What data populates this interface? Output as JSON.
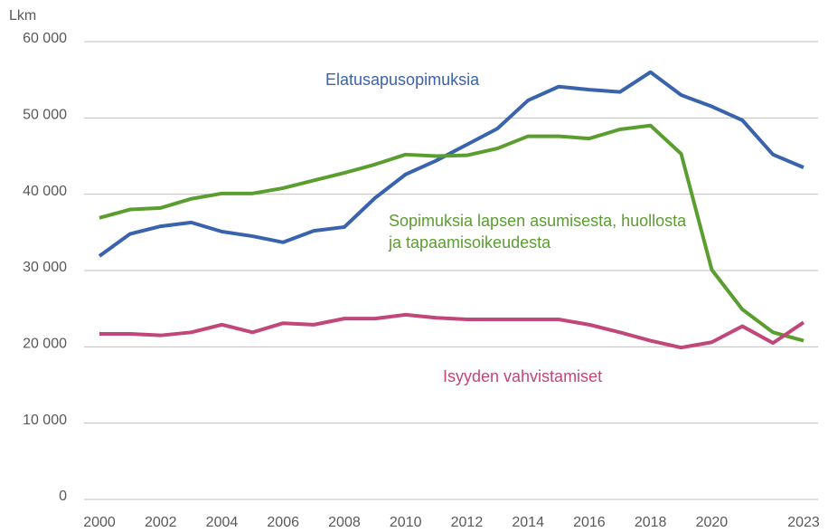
{
  "chart_data": {
    "type": "line",
    "y_label": "Lkm",
    "x": [
      2000,
      2001,
      2002,
      2003,
      2004,
      2005,
      2006,
      2007,
      2008,
      2009,
      2010,
      2011,
      2012,
      2013,
      2014,
      2015,
      2016,
      2017,
      2018,
      2019,
      2020,
      2021,
      2022,
      2023
    ],
    "xlim": [
      2000,
      2023
    ],
    "xticks": [
      2000,
      2002,
      2004,
      2006,
      2008,
      2010,
      2012,
      2014,
      2016,
      2018,
      2020,
      2023
    ],
    "ylim": [
      0,
      60000
    ],
    "yticks": [
      0,
      {
        "value": 10000,
        "label": "10 000"
      },
      {
        "value": 20000,
        "label": "20 000"
      },
      {
        "value": 30000,
        "label": "30 000"
      },
      {
        "value": 40000,
        "label": "40 000"
      },
      {
        "value": 50000,
        "label": "50 000"
      },
      {
        "value": 60000,
        "label": "60 000"
      }
    ],
    "grid": true,
    "series": [
      {
        "name": "Elatusapusopimuksia",
        "color": "#3a63ad",
        "values": [
          31900,
          34800,
          35800,
          36300,
          35100,
          34500,
          33700,
          35200,
          35700,
          39500,
          42600,
          44400,
          46500,
          48600,
          52300,
          54100,
          53700,
          53400,
          56000,
          53000,
          51500,
          49700,
          45200,
          43500
        ]
      },
      {
        "name": "Sopimuksia lapsen asumisesta, huollosta ja tapaamisoikeudesta",
        "color": "#5a9e2f",
        "values": [
          36900,
          38000,
          38200,
          39400,
          40100,
          40100,
          40800,
          41800,
          42800,
          43900,
          45200,
          45000,
          45100,
          46000,
          47600,
          47600,
          47300,
          48500,
          49000,
          45300,
          30100,
          24900,
          21900,
          20800
        ]
      },
      {
        "name": "Isyyden vahvistamiset",
        "color": "#c1467a",
        "values": [
          21700,
          21700,
          21500,
          21900,
          22900,
          21900,
          23100,
          22900,
          23700,
          23700,
          24200,
          23800,
          23600,
          23600,
          23600,
          23600,
          22900,
          21900,
          20800,
          19900,
          20600,
          22700,
          20500,
          23200
        ]
      }
    ]
  }
}
